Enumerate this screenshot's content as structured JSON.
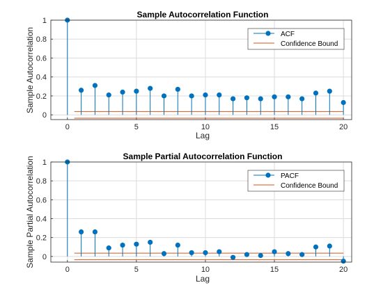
{
  "charts": [
    {
      "id": "acf",
      "type": "stem",
      "title": "Sample Autocorrelation Function",
      "xlabel": "Lag",
      "ylabel": "Sample Autocorrelation",
      "xlim": [
        -1.2,
        20.6
      ],
      "ylim": [
        -0.05,
        1.0
      ],
      "xticks": [
        0,
        5,
        10,
        15,
        20
      ],
      "yticks": [
        0,
        0.2,
        0.4,
        0.6,
        0.8,
        1
      ],
      "grid": true,
      "legend_position": "top-right",
      "series": [
        {
          "name": "ACF",
          "color": "#0072bd",
          "x": [
            0,
            1,
            2,
            3,
            4,
            5,
            6,
            7,
            8,
            9,
            10,
            11,
            12,
            13,
            14,
            15,
            16,
            17,
            18,
            19,
            20
          ],
          "values": [
            1.0,
            0.26,
            0.31,
            0.21,
            0.24,
            0.25,
            0.28,
            0.2,
            0.27,
            0.2,
            0.21,
            0.21,
            0.17,
            0.18,
            0.17,
            0.19,
            0.19,
            0.17,
            0.23,
            0.25,
            0.13
          ]
        }
      ],
      "confidence": {
        "name": "Confidence Bound",
        "color": "#d95319",
        "upper": 0.035,
        "lower": -0.035,
        "x_range": [
          0.5,
          20
        ]
      }
    },
    {
      "id": "pacf",
      "type": "stem",
      "title": "Sample Partial Autocorrelation Function",
      "xlabel": "Lag",
      "ylabel": "Sample Partial Autocorrelation",
      "xlim": [
        -1.2,
        20.6
      ],
      "ylim": [
        -0.06,
        1.0
      ],
      "xticks": [
        0,
        5,
        10,
        15,
        20
      ],
      "yticks": [
        0,
        0.2,
        0.4,
        0.6,
        0.8,
        1
      ],
      "grid": true,
      "legend_position": "top-right",
      "series": [
        {
          "name": "PACF",
          "color": "#0072bd",
          "x": [
            0,
            1,
            2,
            3,
            4,
            5,
            6,
            7,
            8,
            9,
            10,
            11,
            12,
            13,
            14,
            15,
            16,
            17,
            18,
            19,
            20
          ],
          "values": [
            1.0,
            0.26,
            0.26,
            0.09,
            0.12,
            0.13,
            0.15,
            0.03,
            0.12,
            0.04,
            0.04,
            0.05,
            -0.01,
            0.02,
            0.01,
            0.05,
            0.03,
            0.02,
            0.1,
            0.11,
            -0.05
          ]
        }
      ],
      "confidence": {
        "name": "Confidence Bound",
        "color": "#d95319",
        "upper": 0.035,
        "lower": -0.035,
        "x_range": [
          0.5,
          20
        ]
      }
    }
  ]
}
